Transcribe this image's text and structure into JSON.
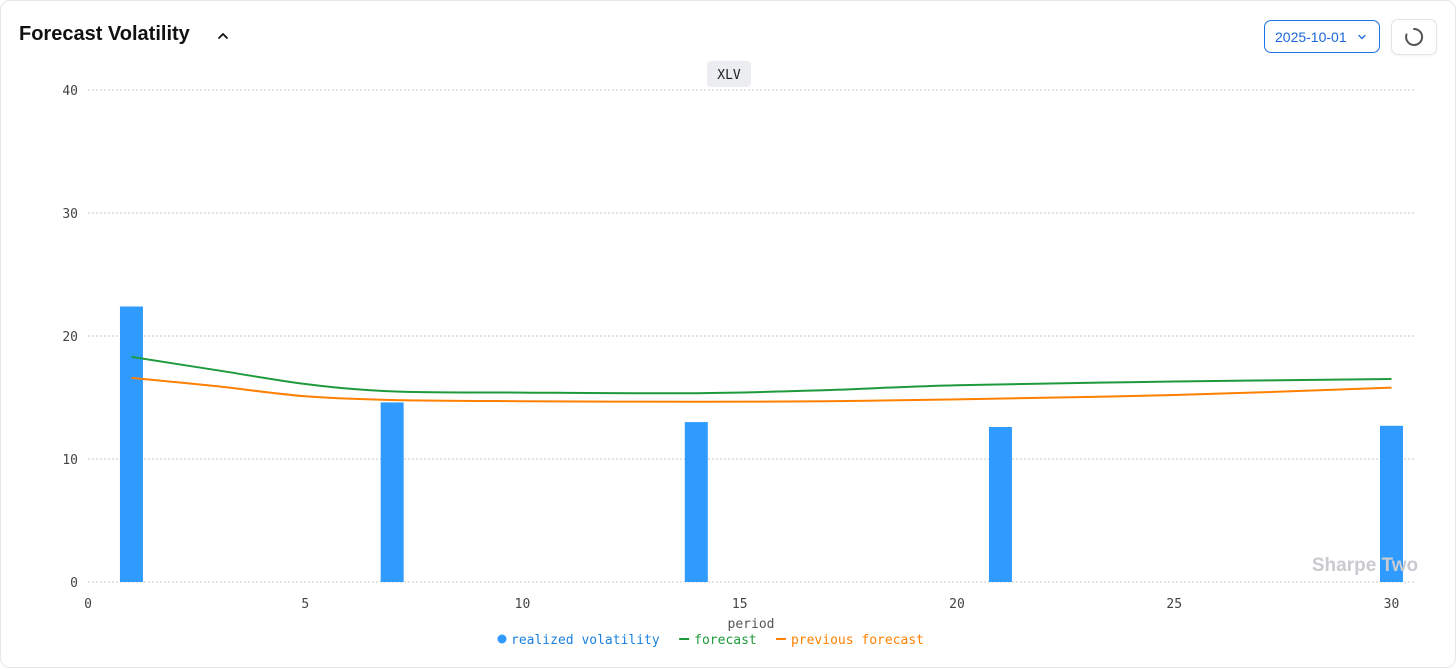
{
  "header": {
    "title": "Forecast Volatility",
    "collapse_icon": "chevron-up-icon",
    "date_value": "2025-10-01",
    "date_icon": "chevron-down-icon",
    "refresh_icon": "spinner-icon"
  },
  "chart_data": {
    "type": "bar",
    "title": "XLV",
    "xlabel": "period",
    "ylabel": "",
    "xlim": [
      0,
      30.5
    ],
    "ylim": [
      0,
      40
    ],
    "x_ticks": [
      0,
      5,
      10,
      15,
      20,
      25,
      30
    ],
    "y_ticks": [
      0,
      10,
      20,
      30,
      40
    ],
    "grid": true,
    "legend_position": "bottom",
    "watermark": "Sharpe Two",
    "series": [
      {
        "name": "realized volatility",
        "type": "bar",
        "color": "#2f9bff",
        "x": [
          1,
          7,
          14,
          21,
          30
        ],
        "values": [
          22.4,
          14.6,
          13.0,
          12.6,
          12.7
        ]
      },
      {
        "name": "forecast",
        "type": "line",
        "color": "#1e9a3c",
        "x": [
          1,
          3,
          5,
          7,
          10,
          14,
          17,
          20,
          25,
          30
        ],
        "values": [
          18.3,
          17.2,
          16.1,
          15.5,
          15.4,
          15.35,
          15.6,
          16.0,
          16.3,
          16.5
        ]
      },
      {
        "name": "previous forecast",
        "type": "line",
        "color": "#ff8000",
        "x": [
          1,
          3,
          5,
          7,
          10,
          14,
          17,
          20,
          25,
          30
        ],
        "values": [
          16.6,
          15.9,
          15.1,
          14.8,
          14.7,
          14.65,
          14.7,
          14.85,
          15.2,
          15.8
        ]
      }
    ]
  }
}
